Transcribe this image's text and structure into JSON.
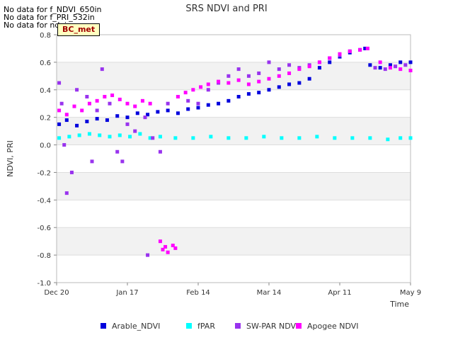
{
  "no_data_messages": [
    "No data for f_NDVI_650in",
    "No data for f_PRI_532in",
    "No data for ndvi"
  ],
  "badge_label": "BC_met",
  "chart_data": {
    "type": "scatter",
    "title": "SRS NDVI and PRI",
    "xlabel": "Time",
    "ylabel": "NDVI, PRI",
    "xlim": [
      "2020-12-20",
      "2021-05-09"
    ],
    "ylim": [
      -1.0,
      0.8
    ],
    "x_ticks": [
      "Dec 20",
      "Jan 17",
      "Feb 14",
      "Mar 14",
      "Apr 11",
      "May 9"
    ],
    "y_ticks": [
      "-1.0",
      "-0.8",
      "-0.6",
      "-0.4",
      "-0.2",
      "0.0",
      "0.2",
      "0.4",
      "0.6",
      "0.8"
    ],
    "grid": true,
    "legend_position": "bottom",
    "series": [
      {
        "name": "Arable_NDVI",
        "color": "#0000dd",
        "points": [
          [
            "2020-12-21",
            0.15
          ],
          [
            "2020-12-24",
            0.18
          ],
          [
            "2020-12-28",
            0.14
          ],
          [
            "2021-01-01",
            0.17
          ],
          [
            "2021-01-05",
            0.19
          ],
          [
            "2021-01-09",
            0.18
          ],
          [
            "2021-01-13",
            0.21
          ],
          [
            "2021-01-17",
            0.2
          ],
          [
            "2021-01-21",
            0.23
          ],
          [
            "2021-01-25",
            0.22
          ],
          [
            "2021-01-29",
            0.24
          ],
          [
            "2021-02-02",
            0.25
          ],
          [
            "2021-02-06",
            0.23
          ],
          [
            "2021-02-10",
            0.26
          ],
          [
            "2021-02-14",
            0.27
          ],
          [
            "2021-02-18",
            0.29
          ],
          [
            "2021-02-22",
            0.3
          ],
          [
            "2021-02-26",
            0.32
          ],
          [
            "2021-03-02",
            0.35
          ],
          [
            "2021-03-06",
            0.37
          ],
          [
            "2021-03-10",
            0.38
          ],
          [
            "2021-03-14",
            0.4
          ],
          [
            "2021-03-18",
            0.42
          ],
          [
            "2021-03-22",
            0.44
          ],
          [
            "2021-03-26",
            0.45
          ],
          [
            "2021-03-30",
            0.48
          ],
          [
            "2021-04-03",
            0.56
          ],
          [
            "2021-04-07",
            0.6
          ],
          [
            "2021-04-11",
            0.64
          ],
          [
            "2021-04-15",
            0.67
          ],
          [
            "2021-04-19",
            0.69
          ],
          [
            "2021-04-21",
            0.7
          ],
          [
            "2021-04-23",
            0.58
          ],
          [
            "2021-04-27",
            0.56
          ],
          [
            "2021-05-01",
            0.58
          ],
          [
            "2021-05-05",
            0.6
          ],
          [
            "2021-05-09",
            0.6
          ]
        ]
      },
      {
        "name": "fPAR",
        "color": "#00ffff",
        "points": [
          [
            "2020-12-21",
            0.05
          ],
          [
            "2020-12-25",
            0.06
          ],
          [
            "2020-12-29",
            0.07
          ],
          [
            "2021-01-02",
            0.08
          ],
          [
            "2021-01-06",
            0.07
          ],
          [
            "2021-01-10",
            0.06
          ],
          [
            "2021-01-14",
            0.07
          ],
          [
            "2021-01-18",
            0.06
          ],
          [
            "2021-01-22",
            0.08
          ],
          [
            "2021-01-26",
            0.05
          ],
          [
            "2021-01-30",
            0.06
          ],
          [
            "2021-02-05",
            0.05
          ],
          [
            "2021-02-12",
            0.05
          ],
          [
            "2021-02-19",
            0.06
          ],
          [
            "2021-02-26",
            0.05
          ],
          [
            "2021-03-05",
            0.05
          ],
          [
            "2021-03-12",
            0.06
          ],
          [
            "2021-03-19",
            0.05
          ],
          [
            "2021-03-26",
            0.05
          ],
          [
            "2021-04-02",
            0.06
          ],
          [
            "2021-04-09",
            0.05
          ],
          [
            "2021-04-16",
            0.05
          ],
          [
            "2021-04-23",
            0.05
          ],
          [
            "2021-04-30",
            0.04
          ],
          [
            "2021-05-05",
            0.05
          ],
          [
            "2021-05-09",
            0.05
          ]
        ]
      },
      {
        "name": "SW-PAR NDVI",
        "color": "#9933ee",
        "points": [
          [
            "2020-12-21",
            0.45
          ],
          [
            "2020-12-22",
            0.3
          ],
          [
            "2020-12-23",
            0.0
          ],
          [
            "2020-12-24",
            -0.35
          ],
          [
            "2020-12-26",
            -0.2
          ],
          [
            "2020-12-28",
            0.4
          ],
          [
            "2021-01-01",
            0.35
          ],
          [
            "2021-01-03",
            -0.12
          ],
          [
            "2021-01-05",
            0.25
          ],
          [
            "2021-01-07",
            0.55
          ],
          [
            "2021-01-10",
            0.3
          ],
          [
            "2021-01-13",
            -0.05
          ],
          [
            "2021-01-15",
            -0.12
          ],
          [
            "2021-01-17",
            0.15
          ],
          [
            "2021-01-20",
            0.1
          ],
          [
            "2021-01-24",
            0.2
          ],
          [
            "2021-01-27",
            0.05
          ],
          [
            "2021-01-30",
            -0.05
          ],
          [
            "2021-02-02",
            0.3
          ],
          [
            "2021-02-06",
            0.35
          ],
          [
            "2021-02-10",
            0.32
          ],
          [
            "2021-02-14",
            0.3
          ],
          [
            "2021-02-18",
            0.4
          ],
          [
            "2021-02-22",
            0.45
          ],
          [
            "2021-02-26",
            0.5
          ],
          [
            "2021-03-02",
            0.55
          ],
          [
            "2021-03-06",
            0.5
          ],
          [
            "2021-03-10",
            0.52
          ],
          [
            "2021-03-14",
            0.6
          ],
          [
            "2021-03-18",
            0.55
          ],
          [
            "2021-03-22",
            0.58
          ],
          [
            "2021-03-26",
            0.56
          ],
          [
            "2021-03-30",
            0.58
          ],
          [
            "2021-04-03",
            0.6
          ],
          [
            "2021-04-07",
            0.63
          ],
          [
            "2021-04-11",
            0.65
          ],
          [
            "2021-04-15",
            0.68
          ],
          [
            "2021-04-19",
            0.69
          ],
          [
            "2021-04-22",
            0.7
          ],
          [
            "2021-04-25",
            0.56
          ],
          [
            "2021-04-29",
            0.55
          ],
          [
            "2021-05-03",
            0.57
          ],
          [
            "2021-05-07",
            0.58
          ],
          [
            "2021-01-25",
            -0.8
          ]
        ]
      },
      {
        "name": "Apogee NDVI",
        "color": "#ff00ff",
        "points": [
          [
            "2020-12-21",
            0.25
          ],
          [
            "2020-12-24",
            0.22
          ],
          [
            "2020-12-27",
            0.28
          ],
          [
            "2020-12-30",
            0.25
          ],
          [
            "2021-01-02",
            0.3
          ],
          [
            "2021-01-05",
            0.32
          ],
          [
            "2021-01-08",
            0.35
          ],
          [
            "2021-01-11",
            0.36
          ],
          [
            "2021-01-14",
            0.33
          ],
          [
            "2021-01-17",
            0.3
          ],
          [
            "2021-01-20",
            0.28
          ],
          [
            "2021-01-23",
            0.32
          ],
          [
            "2021-01-26",
            0.3
          ],
          [
            "2021-01-30",
            -0.7
          ],
          [
            "2021-01-31",
            -0.76
          ],
          [
            "2021-02-01",
            -0.74
          ],
          [
            "2021-02-02",
            -0.78
          ],
          [
            "2021-02-04",
            -0.73
          ],
          [
            "2021-02-05",
            -0.75
          ],
          [
            "2021-02-06",
            0.35
          ],
          [
            "2021-02-09",
            0.38
          ],
          [
            "2021-02-12",
            0.4
          ],
          [
            "2021-02-15",
            0.42
          ],
          [
            "2021-02-18",
            0.44
          ],
          [
            "2021-02-22",
            0.46
          ],
          [
            "2021-02-26",
            0.45
          ],
          [
            "2021-03-02",
            0.47
          ],
          [
            "2021-03-06",
            0.44
          ],
          [
            "2021-03-10",
            0.46
          ],
          [
            "2021-03-14",
            0.48
          ],
          [
            "2021-03-18",
            0.5
          ],
          [
            "2021-03-22",
            0.52
          ],
          [
            "2021-03-26",
            0.55
          ],
          [
            "2021-03-30",
            0.57
          ],
          [
            "2021-04-03",
            0.6
          ],
          [
            "2021-04-07",
            0.63
          ],
          [
            "2021-04-11",
            0.66
          ],
          [
            "2021-04-15",
            0.68
          ],
          [
            "2021-04-19",
            0.69
          ],
          [
            "2021-04-22",
            0.7
          ],
          [
            "2021-04-27",
            0.6
          ],
          [
            "2021-05-01",
            0.56
          ],
          [
            "2021-05-05",
            0.55
          ],
          [
            "2021-05-09",
            0.54
          ]
        ]
      }
    ]
  }
}
